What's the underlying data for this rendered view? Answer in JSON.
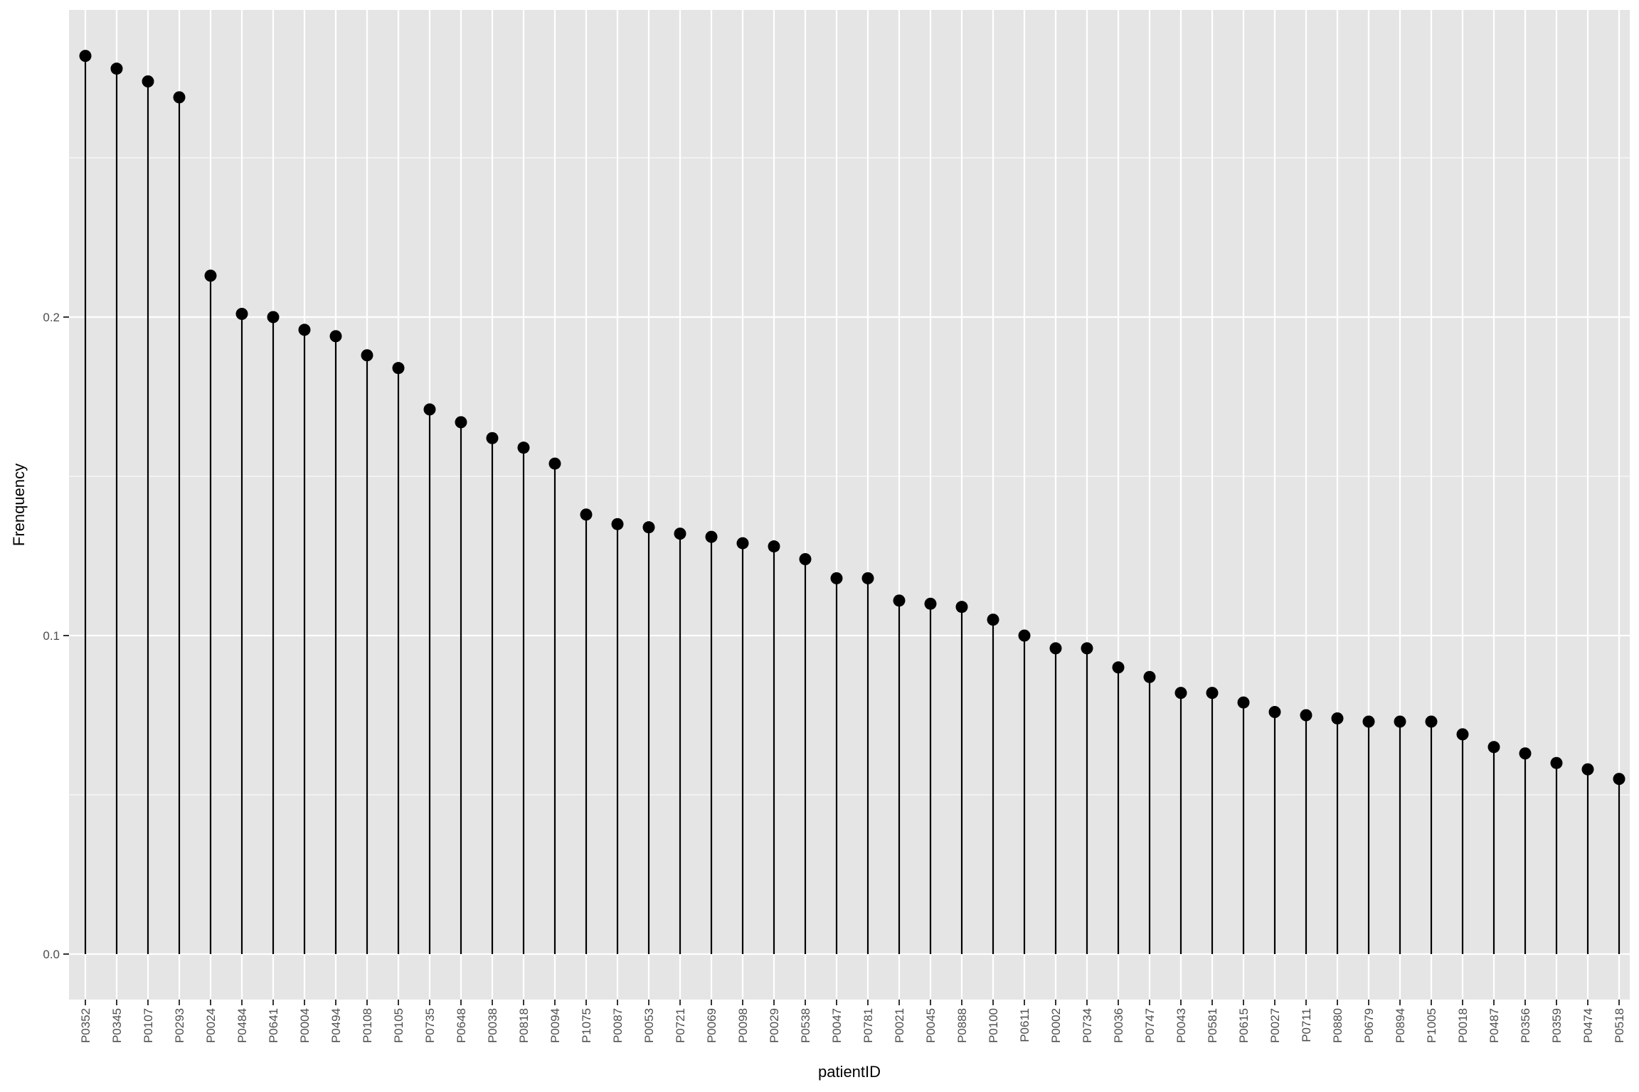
{
  "chart_data": {
    "type": "lollipop",
    "title": "",
    "xlabel": "patientID",
    "ylabel": "Frenquency",
    "ylim": [
      -0.014,
      0.297
    ],
    "y_ticks": [
      0.0,
      0.1,
      0.2
    ],
    "y_tick_labels": [
      "0.0",
      "0.1",
      "0.2"
    ],
    "grid": true,
    "legend": "none",
    "colors": {
      "panel": "#E5E5E5",
      "grid": "#FFFFFF",
      "mark": "#000000"
    },
    "categories": [
      "P0352",
      "P0345",
      "P0107",
      "P0293",
      "P0024",
      "P0484",
      "P0641",
      "P0004",
      "P0494",
      "P0108",
      "P0105",
      "P0735",
      "P0648",
      "P0038",
      "P0818",
      "P0094",
      "P1075",
      "P0087",
      "P0053",
      "P0721",
      "P0069",
      "P0098",
      "P0029",
      "P0538",
      "P0047",
      "P0781",
      "P0021",
      "P0045",
      "P0888",
      "P0100",
      "P0611",
      "P0002",
      "P0734",
      "P0036",
      "P0747",
      "P0043",
      "P0581",
      "P0615",
      "P0027",
      "P0711",
      "P0880",
      "P0679",
      "P0894",
      "P1005",
      "P0018",
      "P0487",
      "P0356",
      "P0359",
      "P0474",
      "P0518"
    ],
    "values": [
      0.282,
      0.278,
      0.274,
      0.269,
      0.213,
      0.201,
      0.2,
      0.196,
      0.194,
      0.188,
      0.184,
      0.171,
      0.167,
      0.162,
      0.159,
      0.154,
      0.138,
      0.135,
      0.134,
      0.132,
      0.131,
      0.129,
      0.128,
      0.124,
      0.118,
      0.118,
      0.111,
      0.11,
      0.109,
      0.105,
      0.1,
      0.096,
      0.096,
      0.09,
      0.087,
      0.082,
      0.082,
      0.079,
      0.076,
      0.075,
      0.074,
      0.073,
      0.073,
      0.073,
      0.069,
      0.065,
      0.063,
      0.06,
      0.058,
      0.055
    ]
  }
}
